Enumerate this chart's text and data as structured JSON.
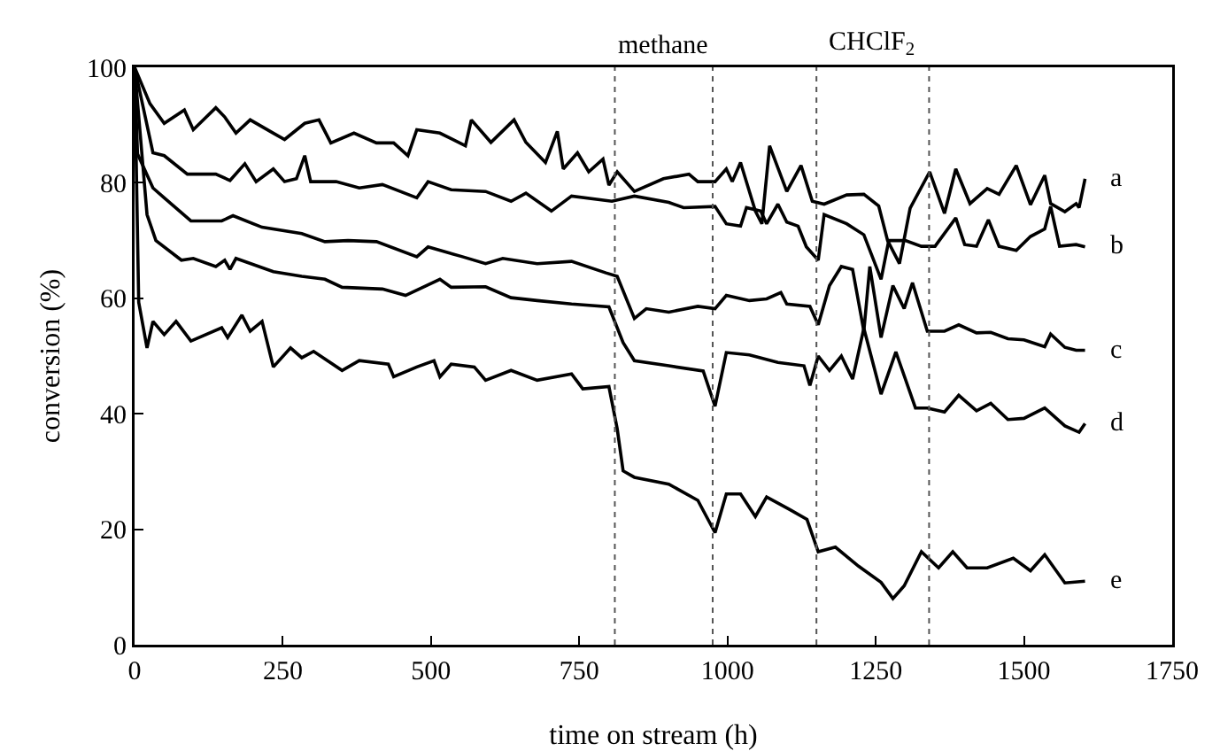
{
  "chart_data": {
    "type": "line",
    "xlabel": "time on stream (h)",
    "ylabel": "conversion (%)",
    "xlim": [
      0,
      1750
    ],
    "xticks": [
      0,
      250,
      500,
      750,
      1000,
      1250,
      1500,
      1750
    ],
    "ylim": [
      0,
      100
    ],
    "yticks": [
      0,
      20,
      40,
      60,
      80,
      100
    ],
    "grid": false,
    "marker": "none",
    "line_style": "solid",
    "ref_lines": [
      {
        "axis": "x",
        "value": 810,
        "color": "#555555",
        "line_style": "dotted"
      },
      {
        "axis": "x",
        "value": 975,
        "color": "#555555",
        "line_style": "dotted"
      },
      {
        "axis": "x",
        "value": 1150,
        "color": "#555555",
        "line_style": "dotted"
      },
      {
        "axis": "x",
        "value": 1340,
        "color": "#555555",
        "line_style": "dotted"
      }
    ],
    "annotations": [
      "methane",
      "CHClF$_{2}$"
    ],
    "series": [
      {
        "name": "a",
        "color": "#000000",
        "x": [
          0,
          26,
          50,
          84,
          99,
          137,
          152,
          171,
          195,
          234,
          253,
          287,
          311,
          331,
          370,
          408,
          437,
          461,
          476,
          515,
          558,
          568,
          601,
          640,
          660,
          693,
          713,
          723,
          747,
          766,
          790,
          800,
          814,
          843,
          892,
          935,
          950,
          979,
          998,
          1008,
          1022,
          1047,
          1058,
          1071,
          1100,
          1124,
          1143,
          1163,
          1201,
          1230,
          1255,
          1270,
          1290,
          1308,
          1341,
          1366,
          1385,
          1409,
          1438,
          1458,
          1487,
          1511,
          1535,
          1545,
          1569,
          1588,
          1593,
          1603
        ],
        "values": [
          100,
          93.7,
          90.3,
          92.6,
          89.2,
          93,
          91.4,
          88.6,
          90.9,
          88.6,
          87.5,
          90.3,
          90.9,
          86.9,
          88.6,
          86.9,
          86.9,
          84.7,
          89.2,
          88.6,
          86.4,
          90.9,
          87,
          90.9,
          87,
          83.5,
          88.9,
          82.4,
          85.2,
          81.9,
          84.1,
          79.6,
          81.9,
          78.5,
          80.7,
          81.5,
          80.2,
          80.2,
          82.4,
          80.2,
          83.5,
          75.1,
          72.9,
          86.4,
          78.5,
          83,
          76.8,
          76.3,
          77.9,
          78,
          76,
          70,
          66,
          75.6,
          81.9,
          74.7,
          82.4,
          76.4,
          79,
          78,
          83,
          76.2,
          81.3,
          76.4,
          75,
          76.4,
          75.7,
          80.7
        ]
      },
      {
        "name": "b",
        "color": "#000000",
        "x": [
          0,
          31,
          50,
          89,
          137,
          161,
          186,
          205,
          234,
          253,
          273,
          287,
          297,
          340,
          379,
          418,
          476,
          495,
          534,
          592,
          635,
          660,
          703,
          737,
          805,
          843,
          901,
          926,
          979,
          998,
          1022,
          1032,
          1056,
          1066,
          1085,
          1100,
          1119,
          1133,
          1153,
          1163,
          1201,
          1230,
          1259,
          1272,
          1300,
          1327,
          1350,
          1385,
          1400,
          1420,
          1440,
          1458,
          1487,
          1511,
          1535,
          1545,
          1560,
          1588,
          1603
        ],
        "values": [
          100,
          85.2,
          84.7,
          81.5,
          81.5,
          80.4,
          83.3,
          80.2,
          82.4,
          80.2,
          80.7,
          84.7,
          80.2,
          80.2,
          79.1,
          79.7,
          77.4,
          80.2,
          78.8,
          78.5,
          76.8,
          78.2,
          75.1,
          77.7,
          76.8,
          77.7,
          76.6,
          75.7,
          75.9,
          72.9,
          72.5,
          75.7,
          75.1,
          72.9,
          76.3,
          73.2,
          72.5,
          68.9,
          66.6,
          74.5,
          72.9,
          71,
          63.3,
          70,
          70,
          69,
          69,
          73.9,
          69.3,
          69,
          73.6,
          69,
          68.3,
          70.7,
          72,
          75.9,
          69,
          69.3,
          68.9
        ]
      },
      {
        "name": "c",
        "color": "#000000",
        "x": [
          0,
          5,
          31,
          50,
          95,
          147,
          166,
          215,
          282,
          321,
          360,
          408,
          476,
          495,
          553,
          592,
          621,
          679,
          737,
          795,
          814,
          843,
          863,
          901,
          950,
          979,
          998,
          1037,
          1066,
          1090,
          1100,
          1139,
          1153,
          1172,
          1192,
          1211,
          1230,
          1240,
          1259,
          1279,
          1298,
          1312,
          1337,
          1366,
          1390,
          1420,
          1444,
          1473,
          1500,
          1535,
          1545,
          1569,
          1588,
          1603
        ],
        "values": [
          100,
          85,
          79.1,
          77.4,
          73.4,
          73.4,
          74.3,
          72.3,
          71.2,
          69.8,
          70,
          69.8,
          67.2,
          68.9,
          67.2,
          66,
          66.9,
          66,
          66.4,
          64.4,
          63.8,
          56.5,
          58.2,
          57.6,
          58.6,
          58.2,
          60.5,
          59.6,
          59.9,
          61,
          59,
          58.6,
          55.4,
          62.2,
          65.5,
          65,
          54.3,
          65.5,
          53.2,
          62.2,
          58.2,
          62.7,
          54.3,
          54.3,
          55.4,
          54,
          54.1,
          53,
          52.8,
          51.6,
          53.8,
          51.5,
          51,
          51
        ]
      },
      {
        "name": "d",
        "color": "#000000",
        "x": [
          0,
          21,
          36,
          79,
          99,
          137,
          152,
          161,
          171,
          234,
          282,
          321,
          350,
          418,
          457,
          515,
          534,
          592,
          635,
          679,
          737,
          800,
          824,
          843,
          901,
          959,
          979,
          998,
          1037,
          1085,
          1129,
          1139,
          1153,
          1172,
          1192,
          1211,
          1230,
          1259,
          1284,
          1317,
          1337,
          1366,
          1390,
          1420,
          1444,
          1473,
          1500,
          1535,
          1569,
          1593,
          1603
        ],
        "values": [
          100,
          74.5,
          70,
          66.6,
          66.9,
          65.5,
          66.6,
          65,
          66.9,
          64.6,
          63.8,
          63.3,
          61.9,
          61.6,
          60.5,
          63.3,
          61.9,
          62,
          60.1,
          59.6,
          59,
          58.5,
          52.3,
          49.2,
          48.3,
          47.4,
          41.3,
          50.6,
          50.2,
          48.9,
          48.3,
          44.9,
          50,
          47.5,
          50,
          46,
          54.8,
          43.4,
          50.7,
          41,
          41,
          40.3,
          43.2,
          40.5,
          41.8,
          39,
          39.2,
          41,
          37.9,
          36.8,
          38.3
        ]
      },
      {
        "name": "e",
        "color": "#000000",
        "x": [
          0,
          7,
          21,
          31,
          50,
          70,
          95,
          147,
          157,
          181,
          195,
          215,
          234,
          263,
          282,
          302,
          350,
          379,
          428,
          437,
          476,
          505,
          515,
          534,
          573,
          592,
          635,
          679,
          737,
          756,
          800,
          814,
          824,
          843,
          901,
          950,
          979,
          998,
          1022,
          1047,
          1066,
          1105,
          1134,
          1153,
          1182,
          1221,
          1259,
          1279,
          1298,
          1327,
          1356,
          1380,
          1404,
          1438,
          1482,
          1511,
          1535,
          1569,
          1603
        ],
        "values": [
          100,
          59.3,
          51.4,
          56,
          53.7,
          56,
          52.6,
          54.9,
          53.2,
          57.1,
          54.3,
          56,
          48.1,
          51.4,
          49.7,
          50.8,
          47.5,
          49.2,
          48.6,
          46.4,
          48.1,
          49.2,
          46.4,
          48.6,
          48.1,
          45.8,
          47.5,
          45.8,
          46.9,
          44.3,
          44.7,
          37.4,
          30.1,
          29,
          27.8,
          25,
          19.4,
          26.1,
          26.1,
          22.2,
          25.6,
          23.4,
          21.7,
          16.1,
          16.9,
          13.6,
          10.8,
          8,
          10.2,
          16.1,
          13.3,
          16.1,
          13.3,
          13.3,
          15,
          12.8,
          15.6,
          10.7,
          11
        ]
      }
    ]
  }
}
